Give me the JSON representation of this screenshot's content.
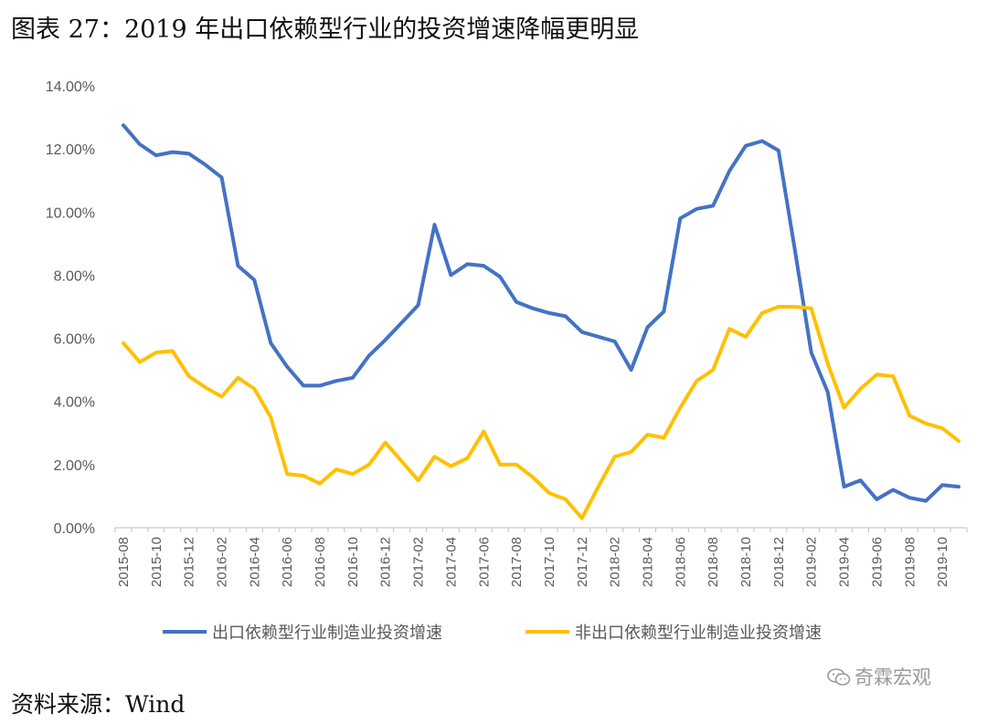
{
  "header": {
    "title": "图表 27：2019 年出口依赖型行业的投资增速降幅更明显"
  },
  "footer": {
    "source": "资料来源：Wind"
  },
  "watermark": {
    "text": "奇霖宏观",
    "icon": "wechat-icon"
  },
  "chart_data": {
    "type": "line",
    "title": "",
    "xlabel": "",
    "ylabel": "",
    "ylim": [
      0,
      14
    ],
    "y_ticks": [
      "0.00%",
      "2.00%",
      "4.00%",
      "6.00%",
      "8.00%",
      "10.00%",
      "12.00%",
      "14.00%"
    ],
    "x_tick_labels": [
      "2015-08",
      "2015-10",
      "2015-12",
      "2016-02",
      "2016-04",
      "2016-06",
      "2016-08",
      "2016-10",
      "2016-12",
      "2017-02",
      "2017-04",
      "2017-06",
      "2017-08",
      "2017-10",
      "2017-12",
      "2018-02",
      "2018-04",
      "2018-06",
      "2018-08",
      "2018-10",
      "2018-12",
      "2019-02",
      "2019-04",
      "2019-06",
      "2019-08",
      "2019-10"
    ],
    "x": [
      "2015-08",
      "2015-09",
      "2015-10",
      "2015-11",
      "2015-12",
      "2016-01",
      "2016-02",
      "2016-03",
      "2016-04",
      "2016-05",
      "2016-06",
      "2016-07",
      "2016-08",
      "2016-09",
      "2016-10",
      "2016-11",
      "2016-12",
      "2017-01",
      "2017-02",
      "2017-03",
      "2017-04",
      "2017-05",
      "2017-06",
      "2017-07",
      "2017-08",
      "2017-09",
      "2017-10",
      "2017-11",
      "2017-12",
      "2018-01",
      "2018-02",
      "2018-03",
      "2018-04",
      "2018-05",
      "2018-06",
      "2018-07",
      "2018-08",
      "2018-09",
      "2018-10",
      "2018-11",
      "2018-12",
      "2019-01",
      "2019-02",
      "2019-03",
      "2019-04",
      "2019-05",
      "2019-06",
      "2019-07",
      "2019-08",
      "2019-09",
      "2019-10",
      "2019-11"
    ],
    "series": [
      {
        "name": "出口依赖型行业制造业投资增速",
        "color": "#4472C4",
        "values": [
          12.75,
          12.15,
          11.8,
          11.9,
          11.85,
          11.5,
          11.1,
          8.3,
          7.85,
          5.85,
          5.1,
          4.5,
          4.5,
          4.65,
          4.75,
          5.45,
          5.95,
          6.5,
          7.05,
          9.6,
          8.0,
          8.35,
          8.3,
          7.95,
          7.15,
          6.95,
          6.8,
          6.7,
          6.2,
          6.05,
          5.9,
          5.0,
          6.35,
          6.85,
          9.8,
          10.1,
          10.2,
          11.3,
          12.1,
          12.25,
          11.95,
          8.8,
          5.55,
          4.3,
          1.3,
          1.5,
          0.9,
          1.2,
          0.95,
          0.85,
          1.35,
          1.3
        ]
      },
      {
        "name": "非出口依赖型行业制造业投资增速",
        "color": "#FFC000",
        "values": [
          5.85,
          5.25,
          5.55,
          5.6,
          4.8,
          4.45,
          4.15,
          4.75,
          4.4,
          3.5,
          1.7,
          1.65,
          1.4,
          1.85,
          1.7,
          2.0,
          2.7,
          2.1,
          1.5,
          2.25,
          1.95,
          2.2,
          3.05,
          2.0,
          2.0,
          1.6,
          1.1,
          0.9,
          0.3,
          1.3,
          2.25,
          2.4,
          2.95,
          2.85,
          3.8,
          4.65,
          5.0,
          6.3,
          6.05,
          6.8,
          7.0,
          7.0,
          6.95,
          5.2,
          3.8,
          4.4,
          4.85,
          4.8,
          3.55,
          3.3,
          3.15,
          2.75
        ]
      }
    ],
    "grid": false,
    "legend_position": "bottom"
  }
}
